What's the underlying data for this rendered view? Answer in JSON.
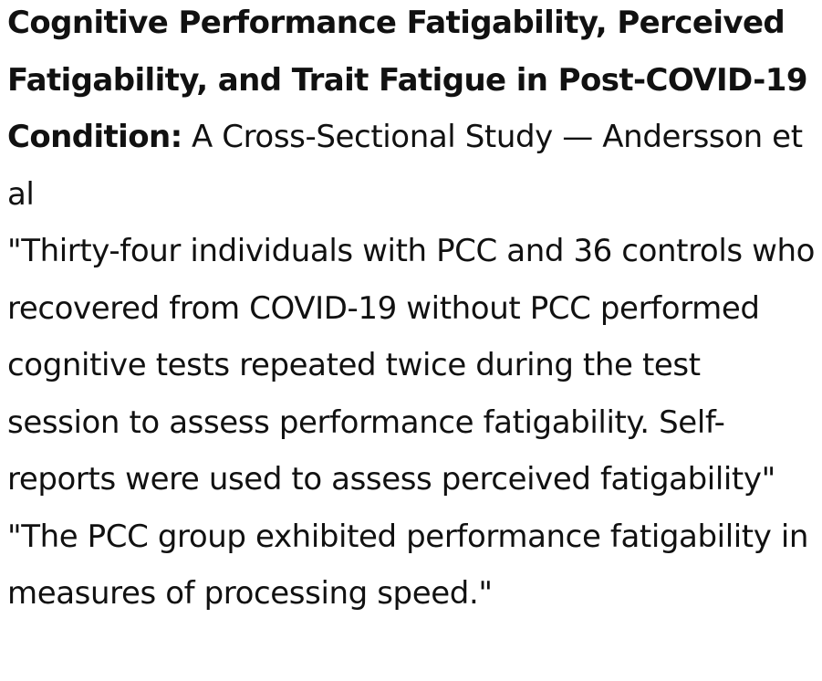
{
  "article": {
    "title": "Cognitive Performance Fatigability, Perceived Fatigability, and Trait Fatigue in Post-COVID-19 Condition:",
    "subtitle": " A Cross-Sectional Study — Andersson et al",
    "quote_1": "\"Thirty-four individuals with PCC and 36 controls who recovered from COVID-19 without PCC performed cognitive tests repeated twice during the test session to assess performance fatigability. Self-reports were used to assess perceived fatigability\"",
    "quote_2": "\"The PCC group exhibited performance fatigability in measures of processing speed.\""
  }
}
